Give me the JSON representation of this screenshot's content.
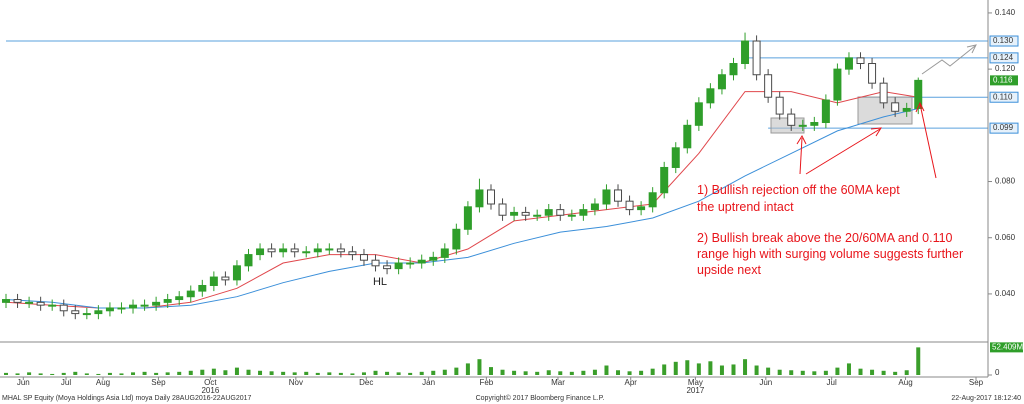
{
  "chart_data": {
    "type": "candlestick",
    "open": [
      0.037,
      0.038,
      0.037,
      0.037,
      0.036,
      0.036,
      0.034,
      0.033,
      0.033,
      0.034,
      0.035,
      0.035,
      0.036,
      0.036,
      0.037,
      0.038,
      0.039,
      0.041,
      0.043,
      0.046,
      0.045,
      0.05,
      0.054,
      0.056,
      0.055,
      0.056,
      0.055,
      0.055,
      0.056,
      0.056,
      0.055,
      0.054,
      0.052,
      0.05,
      0.049,
      0.051,
      0.051,
      0.052,
      0.053,
      0.056,
      0.063,
      0.071,
      0.077,
      0.072,
      0.068,
      0.069,
      0.068,
      0.068,
      0.07,
      0.068,
      0.068,
      0.07,
      0.072,
      0.077,
      0.073,
      0.07,
      0.071,
      0.076,
      0.085,
      0.092,
      0.1,
      0.108,
      0.113,
      0.118,
      0.122,
      0.13,
      0.118,
      0.11,
      0.104,
      0.1,
      0.1,
      0.101,
      0.109,
      0.12,
      0.124,
      0.122,
      0.115,
      0.108,
      0.105,
      0.106
    ],
    "high": [
      0.04,
      0.04,
      0.039,
      0.039,
      0.038,
      0.038,
      0.036,
      0.035,
      0.036,
      0.037,
      0.037,
      0.038,
      0.038,
      0.039,
      0.04,
      0.041,
      0.043,
      0.045,
      0.048,
      0.048,
      0.052,
      0.056,
      0.058,
      0.058,
      0.058,
      0.058,
      0.057,
      0.058,
      0.058,
      0.058,
      0.057,
      0.056,
      0.054,
      0.052,
      0.053,
      0.053,
      0.054,
      0.055,
      0.058,
      0.065,
      0.073,
      0.081,
      0.079,
      0.074,
      0.071,
      0.071,
      0.07,
      0.072,
      0.072,
      0.07,
      0.072,
      0.074,
      0.079,
      0.079,
      0.075,
      0.073,
      0.078,
      0.087,
      0.094,
      0.102,
      0.11,
      0.115,
      0.12,
      0.124,
      0.133,
      0.132,
      0.12,
      0.112,
      0.106,
      0.102,
      0.103,
      0.111,
      0.122,
      0.126,
      0.126,
      0.124,
      0.117,
      0.11,
      0.108,
      0.117
    ],
    "low": [
      0.035,
      0.035,
      0.035,
      0.034,
      0.034,
      0.032,
      0.031,
      0.031,
      0.031,
      0.032,
      0.033,
      0.033,
      0.034,
      0.034,
      0.035,
      0.036,
      0.037,
      0.039,
      0.041,
      0.043,
      0.043,
      0.048,
      0.052,
      0.053,
      0.053,
      0.053,
      0.053,
      0.053,
      0.054,
      0.053,
      0.052,
      0.05,
      0.048,
      0.047,
      0.047,
      0.049,
      0.049,
      0.05,
      0.051,
      0.054,
      0.061,
      0.069,
      0.07,
      0.066,
      0.066,
      0.066,
      0.066,
      0.066,
      0.066,
      0.066,
      0.066,
      0.068,
      0.07,
      0.071,
      0.068,
      0.068,
      0.069,
      0.074,
      0.083,
      0.09,
      0.098,
      0.106,
      0.111,
      0.116,
      0.12,
      0.116,
      0.108,
      0.102,
      0.098,
      0.098,
      0.098,
      0.099,
      0.107,
      0.118,
      0.12,
      0.113,
      0.106,
      0.103,
      0.103,
      0.104
    ],
    "close": [
      0.038,
      0.037,
      0.037,
      0.036,
      0.036,
      0.034,
      0.033,
      0.033,
      0.034,
      0.035,
      0.035,
      0.036,
      0.036,
      0.037,
      0.038,
      0.039,
      0.041,
      0.043,
      0.046,
      0.045,
      0.05,
      0.054,
      0.056,
      0.055,
      0.056,
      0.055,
      0.055,
      0.056,
      0.056,
      0.055,
      0.054,
      0.052,
      0.05,
      0.049,
      0.051,
      0.051,
      0.052,
      0.053,
      0.056,
      0.063,
      0.071,
      0.077,
      0.072,
      0.068,
      0.069,
      0.068,
      0.068,
      0.07,
      0.068,
      0.068,
      0.07,
      0.072,
      0.077,
      0.073,
      0.07,
      0.071,
      0.076,
      0.085,
      0.092,
      0.1,
      0.108,
      0.113,
      0.118,
      0.122,
      0.13,
      0.118,
      0.11,
      0.104,
      0.1,
      0.1,
      0.101,
      0.109,
      0.12,
      0.124,
      0.122,
      0.115,
      0.108,
      0.105,
      0.106,
      0.116
    ],
    "up_color": "#2f9e2a",
    "down_color": "#4a4a4a",
    "ma": {
      "x": [
        0,
        4,
        8,
        12,
        16,
        20,
        24,
        28,
        32,
        36,
        40,
        44,
        48,
        52,
        56,
        60,
        64,
        68,
        72,
        76,
        79
      ],
      "series": [
        {
          "color": "#e0474c",
          "values": [
            0.037,
            0.036,
            0.035,
            0.035,
            0.037,
            0.042,
            0.051,
            0.054,
            0.054,
            0.051,
            0.056,
            0.066,
            0.068,
            0.07,
            0.072,
            0.09,
            0.112,
            0.112,
            0.108,
            0.112,
            0.11
          ]
        },
        {
          "color": "#3b8fd9",
          "values": [
            0.038,
            0.037,
            0.035,
            0.035,
            0.036,
            0.039,
            0.044,
            0.048,
            0.051,
            0.051,
            0.053,
            0.058,
            0.062,
            0.064,
            0.067,
            0.073,
            0.082,
            0.09,
            0.098,
            0.103,
            0.106
          ]
        }
      ]
    },
    "volume": {
      "color": "#3a9e2a",
      "values": [
        4,
        3,
        5,
        3,
        2,
        4,
        6,
        3,
        2,
        4,
        3,
        5,
        6,
        4,
        5,
        6,
        8,
        10,
        12,
        9,
        14,
        10,
        8,
        7,
        6,
        5,
        6,
        4,
        5,
        4,
        3,
        5,
        8,
        6,
        5,
        4,
        6,
        8,
        10,
        14,
        22,
        30,
        15,
        10,
        8,
        7,
        6,
        9,
        7,
        6,
        8,
        10,
        18,
        9,
        7,
        8,
        12,
        20,
        25,
        28,
        22,
        26,
        18,
        20,
        30,
        18,
        14,
        10,
        9,
        8,
        7,
        8,
        14,
        22,
        12,
        10,
        8,
        6,
        9,
        52.409
      ],
      "ylim": [
        0,
        55
      ],
      "yticks": [
        0
      ],
      "last_label": {
        "value": 52.409,
        "label": "52.409M"
      }
    },
    "xlim": [
      0,
      85.3
    ],
    "xticks": [
      {
        "value": 1.5,
        "label": "Jun"
      },
      {
        "value": 5.2,
        "label": "Jul"
      },
      {
        "value": 8.4,
        "label": "Aug"
      },
      {
        "value": 13.2,
        "label": "Sep"
      },
      {
        "value": 17.7,
        "label": "Oct"
      },
      {
        "value": 25.1,
        "label": "Nov"
      },
      {
        "value": 31.2,
        "label": "Dec"
      },
      {
        "value": 36.6,
        "label": "Jan"
      },
      {
        "value": 41.6,
        "label": "Feb"
      },
      {
        "value": 47.8,
        "label": "Mar"
      },
      {
        "value": 54.1,
        "label": "Apr"
      },
      {
        "value": 59.7,
        "label": "May"
      },
      {
        "value": 65.8,
        "label": "Jun"
      },
      {
        "value": 71.5,
        "label": "Jul"
      },
      {
        "value": 77.9,
        "label": "Aug"
      },
      {
        "value": 84,
        "label": "Sep"
      }
    ],
    "year_labels": [
      {
        "value": 17.7,
        "label": "2016"
      },
      {
        "value": 59.7,
        "label": "2017"
      }
    ],
    "ylim": [
      0.0236,
      0.1446
    ],
    "yticks": [
      {
        "value": 0.04,
        "label": "0.040"
      },
      {
        "value": 0.06,
        "label": "0.060"
      },
      {
        "value": 0.08,
        "label": "0.080"
      },
      {
        "value": 0.12,
        "label": "0.120"
      },
      {
        "value": 0.14,
        "label": "0.140"
      }
    ],
    "levels": [
      {
        "value": 0.13,
        "label": "0.130",
        "start": 0
      },
      {
        "value": 0.124,
        "label": "0.124",
        "start": 64
      },
      {
        "value": 0.11,
        "label": "0.110",
        "start": 74
      },
      {
        "value": 0.099,
        "label": "0.099",
        "start": 66
      }
    ],
    "last_price": {
      "value": 0.116,
      "label": "0.116"
    },
    "annotations": [
      {
        "text": "HL"
      },
      {
        "lines": [
          "1) Bullish rejection off the 60MA kept",
          "the uptrend intact"
        ]
      },
      {
        "lines": [
          "2) Bullish break above the 20/60MA and 0.110",
          "range high with surging volume suggests further",
          "upside next"
        ]
      }
    ],
    "footer": {
      "left": "MHAL SP Equity (Moya Holdings Asia Ltd) moya  Daily 28AUG2016-22AUG2017",
      "center": "Copyright© 2017 Bloomberg Finance L.P.",
      "right": "22-Aug-2017 18:12:40"
    }
  }
}
